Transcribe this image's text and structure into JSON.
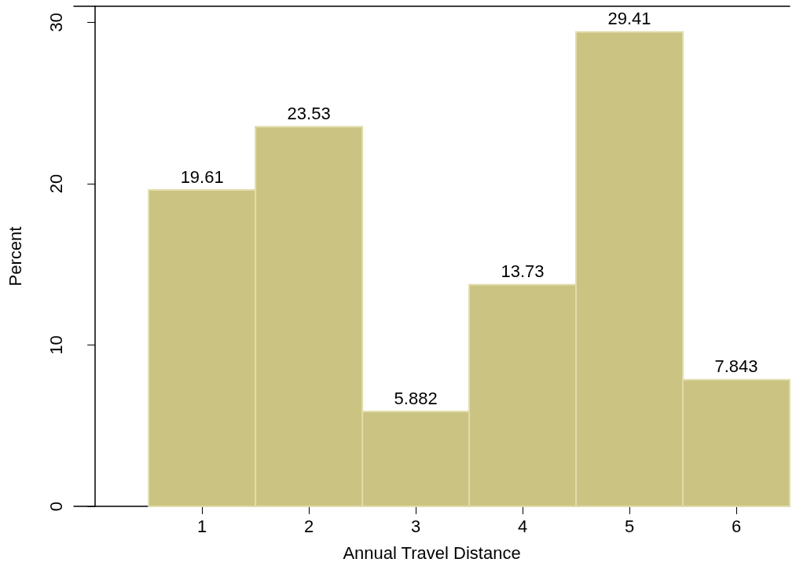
{
  "chart_data": {
    "type": "histogram",
    "xlabel": "Annual Travel Distance",
    "ylabel": "Percent",
    "bins": [
      0.5,
      1.5,
      2.5,
      3.5,
      4.5,
      5.5,
      6.5
    ],
    "values": [
      19.61,
      23.53,
      5.882,
      13.73,
      29.41,
      7.843
    ],
    "color": "#cbc382",
    "xlim": [
      -0.2,
      6.5
    ],
    "xticks": [
      1,
      2,
      3,
      4,
      5,
      6
    ],
    "ylim": [
      0,
      31
    ],
    "yticks": [
      0,
      10,
      20,
      30
    ],
    "grid": false,
    "data_labels": true
  }
}
